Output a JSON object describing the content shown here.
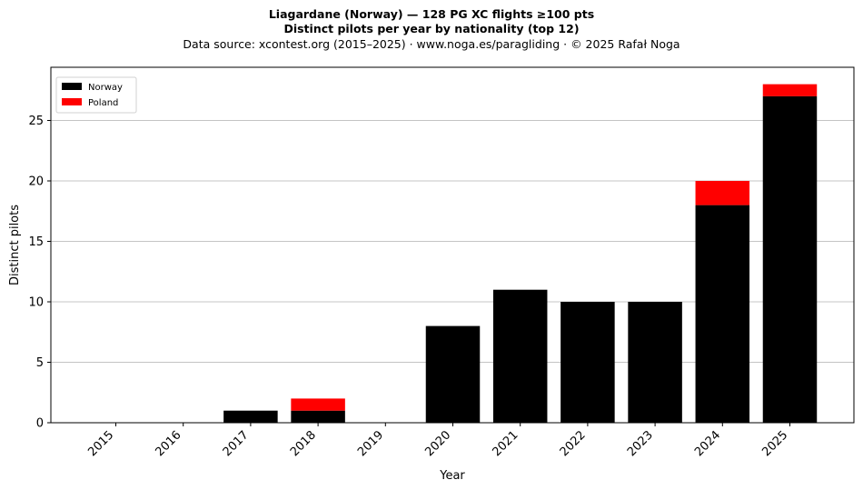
{
  "header": {
    "title_line1": "Liagardane (Norway)  —  128 PG XC flights ≥100 pts",
    "title_line2": "Distinct pilots per year by nationality (top 12)",
    "subtitle": "Data source: xcontest.org (2015–2025)  ·  www.noga.es/paragliding  ·  © 2025 Rafał Noga"
  },
  "chart_data": {
    "type": "bar",
    "stacked": true,
    "categories": [
      "2015",
      "2016",
      "2017",
      "2018",
      "2019",
      "2020",
      "2021",
      "2022",
      "2023",
      "2024",
      "2025"
    ],
    "series": [
      {
        "name": "Norway",
        "color": "#000000",
        "values": [
          0,
          0,
          1,
          1,
          0,
          8,
          11,
          10,
          10,
          18,
          27
        ]
      },
      {
        "name": "Poland",
        "color": "#ff0000",
        "values": [
          0,
          0,
          0,
          1,
          0,
          0,
          0,
          0,
          0,
          2,
          1
        ]
      }
    ],
    "xlabel": "Year",
    "ylabel": "Distinct pilots",
    "ylim": [
      0,
      29.4
    ],
    "yticks": [
      0,
      5,
      10,
      15,
      20,
      25
    ],
    "grid": "y",
    "legend_position": "top-left"
  }
}
